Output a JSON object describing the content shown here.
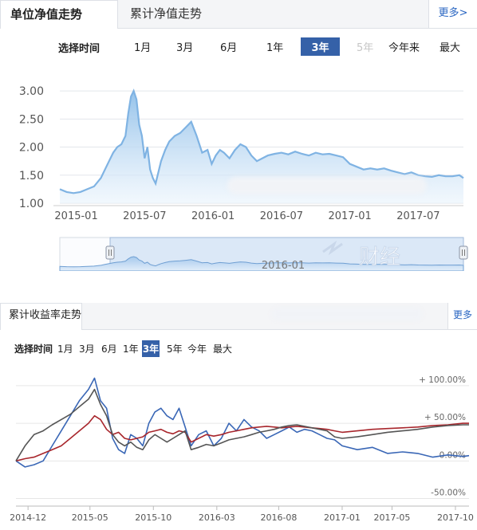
{
  "panel1": {
    "tab_active": "单位净值走势",
    "tab_inactive": "累计净值走势",
    "more": "更多>",
    "range_label": "选择时间",
    "range_buttons": [
      {
        "label": "1月",
        "state": "normal"
      },
      {
        "label": "3月",
        "state": "normal"
      },
      {
        "label": "6月",
        "state": "normal"
      },
      {
        "label": "1年",
        "state": "normal"
      },
      {
        "label": "3年",
        "state": "active"
      },
      {
        "label": "5年",
        "state": "disabled"
      },
      {
        "label": "今年来",
        "state": "normal"
      },
      {
        "label": "最大",
        "state": "normal"
      }
    ],
    "navigator_label": "2016-01",
    "watermark": "财经"
  },
  "panel2": {
    "tab_active": "累计收益率走势",
    "more": "更多",
    "range_label": "选择时间",
    "range_buttons": [
      {
        "label": "1月",
        "state": "normal"
      },
      {
        "label": "3月",
        "state": "normal"
      },
      {
        "label": "6月",
        "state": "normal"
      },
      {
        "label": "1年",
        "state": "normal"
      },
      {
        "label": "3年",
        "state": "active"
      },
      {
        "label": "5年",
        "state": "normal"
      },
      {
        "label": "今年",
        "state": "normal"
      },
      {
        "label": "最大",
        "state": "normal"
      }
    ]
  },
  "colors": {
    "accent": "#3561a8",
    "nav_line": "#7fb3e3",
    "area_fill": "#b9d6f3",
    "series_blue": "#3a67b6",
    "series_red": "#a8262c",
    "series_gray": "#555555"
  },
  "chart_data": [
    {
      "type": "area",
      "ylim": [
        1.0,
        3.2
      ],
      "yticks": [
        "3.00",
        "2.50",
        "2.00",
        "1.50",
        "1.00"
      ],
      "ytick_values": [
        3.0,
        2.5,
        2.0,
        1.5,
        1.0
      ],
      "xticks": [
        "2015-01",
        "2015-07",
        "2016-01",
        "2016-07",
        "2017-01",
        "2017-07"
      ],
      "xtick_values": [
        2015.0,
        2015.5,
        2016.0,
        2016.5,
        2017.0,
        2017.5
      ],
      "xlim": [
        2014.88,
        2017.83
      ],
      "grid": true,
      "series": [
        {
          "x": [
            2014.88,
            2014.93,
            2014.98,
            2015.03,
            2015.08,
            2015.13,
            2015.18,
            2015.21,
            2015.24,
            2015.27,
            2015.3,
            2015.33,
            2015.36,
            2015.38,
            2015.4,
            2015.42,
            2015.44,
            2015.46,
            2015.48,
            2015.5,
            2015.52,
            2015.54,
            2015.56,
            2015.58,
            2015.6,
            2015.62,
            2015.65,
            2015.68,
            2015.72,
            2015.76,
            2015.8,
            2015.84,
            2015.88,
            2015.92,
            2015.96,
            2015.99,
            2016.02,
            2016.05,
            2016.08,
            2016.12,
            2016.16,
            2016.2,
            2016.24,
            2016.28,
            2016.32,
            2016.36,
            2016.4,
            2016.45,
            2016.5,
            2016.55,
            2016.6,
            2016.65,
            2016.7,
            2016.75,
            2016.8,
            2016.85,
            2016.9,
            2016.95,
            2017.0,
            2017.05,
            2017.1,
            2017.15,
            2017.2,
            2017.25,
            2017.3,
            2017.35,
            2017.4,
            2017.45,
            2017.5,
            2017.55,
            2017.6,
            2017.65,
            2017.7,
            2017.75,
            2017.8,
            2017.83
          ],
          "y": [
            1.25,
            1.2,
            1.18,
            1.2,
            1.25,
            1.3,
            1.45,
            1.6,
            1.75,
            1.9,
            2.0,
            2.05,
            2.2,
            2.6,
            2.9,
            3.0,
            2.85,
            2.4,
            2.2,
            1.8,
            2.0,
            1.6,
            1.45,
            1.35,
            1.55,
            1.75,
            1.95,
            2.1,
            2.2,
            2.25,
            2.35,
            2.45,
            2.2,
            1.9,
            1.95,
            1.7,
            1.85,
            1.95,
            1.9,
            1.8,
            1.95,
            2.05,
            2.0,
            1.85,
            1.75,
            1.8,
            1.85,
            1.88,
            1.9,
            1.87,
            1.92,
            1.88,
            1.85,
            1.9,
            1.87,
            1.88,
            1.85,
            1.82,
            1.7,
            1.65,
            1.6,
            1.62,
            1.6,
            1.62,
            1.58,
            1.55,
            1.52,
            1.55,
            1.5,
            1.48,
            1.47,
            1.5,
            1.48,
            1.48,
            1.5,
            1.45
          ]
        }
      ]
    },
    {
      "type": "line",
      "ylim": [
        -60,
        120
      ],
      "yticks": [
        "+ 100.00%",
        "+ 50.00%",
        "0.00%",
        "-50.00%"
      ],
      "ytick_values": [
        100,
        50,
        0,
        -50
      ],
      "xticks": [
        "2014-12",
        "2015-05",
        "2015-10",
        "2016-03",
        "2016-08",
        "2017-01",
        "2017-05",
        "2017-10"
      ],
      "xtick_values": [
        2014.92,
        2015.33,
        2015.75,
        2016.17,
        2016.58,
        2017.0,
        2017.33,
        2017.75
      ],
      "xlim": [
        2014.84,
        2017.84
      ],
      "grid": true,
      "series": [
        {
          "color": "#3a67b6",
          "x": [
            2014.84,
            2014.9,
            2014.96,
            2015.02,
            2015.08,
            2015.14,
            2015.2,
            2015.26,
            2015.32,
            2015.36,
            2015.4,
            2015.44,
            2015.48,
            2015.52,
            2015.56,
            2015.6,
            2015.64,
            2015.68,
            2015.72,
            2015.76,
            2015.8,
            2015.84,
            2015.88,
            2015.92,
            2015.96,
            2016.0,
            2016.05,
            2016.1,
            2016.15,
            2016.2,
            2016.25,
            2016.3,
            2016.35,
            2016.4,
            2016.45,
            2016.5,
            2016.55,
            2016.6,
            2016.65,
            2016.7,
            2016.75,
            2016.8,
            2016.85,
            2016.9,
            2016.95,
            2017.0,
            2017.1,
            2017.2,
            2017.3,
            2017.4,
            2017.5,
            2017.6,
            2017.7,
            2017.8,
            2017.84
          ],
          "y": [
            0,
            -8,
            -5,
            0,
            20,
            40,
            60,
            80,
            95,
            110,
            80,
            70,
            30,
            15,
            10,
            35,
            30,
            20,
            50,
            65,
            70,
            60,
            55,
            70,
            45,
            20,
            35,
            40,
            20,
            30,
            50,
            40,
            55,
            45,
            40,
            30,
            35,
            40,
            45,
            38,
            42,
            40,
            35,
            30,
            28,
            20,
            15,
            18,
            10,
            12,
            10,
            5,
            8,
            6,
            7
          ]
        },
        {
          "color": "#a8262c",
          "x": [
            2014.84,
            2014.9,
            2014.96,
            2015.02,
            2015.08,
            2015.14,
            2015.2,
            2015.26,
            2015.32,
            2015.36,
            2015.4,
            2015.44,
            2015.48,
            2015.52,
            2015.56,
            2015.6,
            2015.64,
            2015.68,
            2015.72,
            2015.76,
            2015.8,
            2015.84,
            2015.88,
            2015.92,
            2015.96,
            2016.0,
            2016.05,
            2016.1,
            2016.15,
            2016.2,
            2016.25,
            2016.3,
            2016.35,
            2016.4,
            2016.45,
            2016.5,
            2016.55,
            2016.6,
            2016.65,
            2016.7,
            2016.75,
            2016.8,
            2016.85,
            2016.9,
            2016.95,
            2017.0,
            2017.1,
            2017.2,
            2017.3,
            2017.4,
            2017.5,
            2017.6,
            2017.7,
            2017.8,
            2017.84
          ],
          "y": [
            0,
            3,
            5,
            10,
            15,
            20,
            30,
            40,
            50,
            60,
            55,
            42,
            35,
            38,
            30,
            28,
            30,
            32,
            38,
            40,
            42,
            38,
            36,
            40,
            38,
            25,
            30,
            35,
            33,
            35,
            38,
            40,
            42,
            44,
            45,
            46,
            45,
            44,
            45,
            46,
            45,
            44,
            43,
            42,
            40,
            38,
            40,
            42,
            43,
            44,
            45,
            47,
            48,
            50,
            50
          ]
        },
        {
          "color": "#555555",
          "x": [
            2014.84,
            2014.9,
            2014.96,
            2015.02,
            2015.08,
            2015.14,
            2015.2,
            2015.26,
            2015.32,
            2015.36,
            2015.4,
            2015.44,
            2015.48,
            2015.52,
            2015.56,
            2015.6,
            2015.64,
            2015.68,
            2015.72,
            2015.76,
            2015.8,
            2015.84,
            2015.88,
            2015.92,
            2015.96,
            2016.0,
            2016.05,
            2016.1,
            2016.15,
            2016.2,
            2016.25,
            2016.3,
            2016.35,
            2016.4,
            2016.45,
            2016.5,
            2016.55,
            2016.6,
            2016.65,
            2016.7,
            2016.75,
            2016.8,
            2016.85,
            2016.9,
            2016.95,
            2017.0,
            2017.1,
            2017.2,
            2017.3,
            2017.4,
            2017.5,
            2017.6,
            2017.7,
            2017.8,
            2017.84
          ],
          "y": [
            0,
            20,
            35,
            40,
            48,
            55,
            62,
            72,
            82,
            95,
            75,
            60,
            35,
            25,
            20,
            25,
            18,
            15,
            28,
            35,
            30,
            25,
            30,
            35,
            40,
            15,
            18,
            22,
            20,
            24,
            28,
            30,
            32,
            35,
            38,
            40,
            42,
            45,
            47,
            48,
            46,
            44,
            42,
            40,
            32,
            30,
            32,
            35,
            38,
            40,
            42,
            45,
            47,
            48,
            48
          ]
        }
      ]
    }
  ]
}
